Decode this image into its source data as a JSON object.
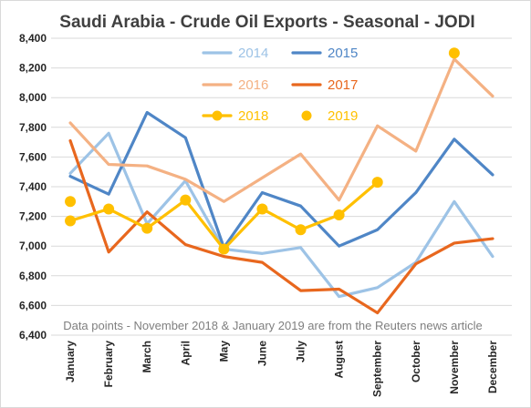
{
  "chart_data": {
    "type": "line",
    "title": "Saudi Arabia - Crude Oil Exports - Seasonal - JODI",
    "categories": [
      "January",
      "February",
      "March",
      "April",
      "May",
      "June",
      "July",
      "August",
      "September",
      "October",
      "November",
      "December"
    ],
    "ylim": [
      6400,
      8400
    ],
    "yticks": [
      "6,400",
      "6,600",
      "6,800",
      "7,000",
      "7,200",
      "7,400",
      "7,600",
      "7,800",
      "8,000",
      "8,200",
      "8,400"
    ],
    "ytick_values": [
      6400,
      6600,
      6800,
      7000,
      7200,
      7400,
      7600,
      7800,
      8000,
      8200,
      8400
    ],
    "grid": true,
    "legend_position": "top-center",
    "annotation": "Data points - November 2018 & January 2019 are from the Reuters news article",
    "series": [
      {
        "name": "2014",
        "color": "#9dc3e6",
        "style": "line",
        "values": [
          7490,
          7760,
          7150,
          7440,
          6980,
          6950,
          6990,
          6660,
          6720,
          6890,
          7300,
          6930
        ]
      },
      {
        "name": "2015",
        "color": "#4f86c6",
        "style": "line",
        "values": [
          7470,
          7350,
          7900,
          7730,
          6990,
          7360,
          7270,
          7000,
          7110,
          7360,
          7720,
          7480
        ]
      },
      {
        "name": "2016",
        "color": "#f4b183",
        "style": "line",
        "values": [
          7830,
          7550,
          7540,
          7450,
          7300,
          7460,
          7620,
          7310,
          7810,
          7640,
          8260,
          8010
        ]
      },
      {
        "name": "2017",
        "color": "#e8671e",
        "style": "line",
        "values": [
          7710,
          6960,
          7230,
          7010,
          6930,
          6890,
          6700,
          6710,
          6550,
          6880,
          7020,
          7050
        ]
      },
      {
        "name": "2018",
        "color": "#ffc000",
        "style": "line-marker",
        "values": [
          7170,
          7250,
          7120,
          7310,
          6980,
          7250,
          7110,
          7210,
          7430,
          null,
          8300,
          null
        ]
      },
      {
        "name": "2019",
        "color": "#ffc000",
        "style": "marker",
        "values": [
          7300,
          null,
          null,
          null,
          null,
          null,
          null,
          null,
          null,
          null,
          null,
          null
        ]
      }
    ]
  }
}
